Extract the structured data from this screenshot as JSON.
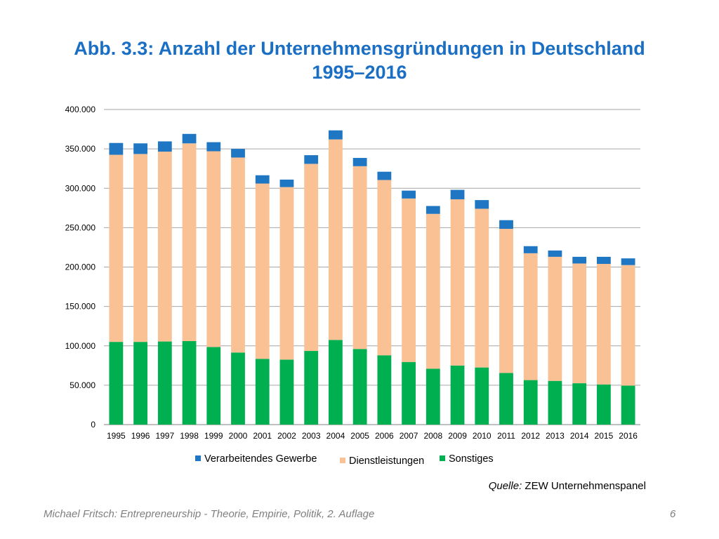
{
  "title": {
    "line1": "Abb. 3.3: Anzahl der Unternehmensgründungen in Deutschland",
    "line2": "1995–2016"
  },
  "source": {
    "label": "Quelle:",
    "text": "ZEW Unternehmenspanel"
  },
  "footer": {
    "text": "Michael Fritsch: Entrepreneurship - Theorie, Empirie, Politik, 2. Auflage",
    "page": "6"
  },
  "colors": {
    "verarbeitendes": "#1f77c4",
    "dienstleistungen": "#f9c194",
    "sonstiges": "#00b050",
    "grid": "#a6a6a6",
    "axis": "#808080"
  },
  "chart_data": {
    "type": "bar",
    "stacked": true,
    "categories": [
      "1995",
      "1996",
      "1997",
      "1998",
      "1999",
      "2000",
      "2001",
      "2002",
      "2003",
      "2004",
      "2005",
      "2006",
      "2007",
      "2008",
      "2009",
      "2010",
      "2011",
      "2012",
      "2013",
      "2014",
      "2015",
      "2016"
    ],
    "series": [
      {
        "name": "Sonstiges",
        "color": "#00b050",
        "values": [
          105000,
          105000,
          105500,
          106000,
          98500,
          91500,
          83500,
          82500,
          93500,
          107500,
          96000,
          88000,
          79500,
          71000,
          75000,
          72500,
          65500,
          56500,
          55500,
          52500,
          51000,
          49500
        ]
      },
      {
        "name": "Dienstleistungen",
        "color": "#f9c194",
        "values": [
          237500,
          238500,
          241000,
          251000,
          248500,
          247500,
          222500,
          219000,
          237500,
          254500,
          232000,
          222500,
          207500,
          196500,
          211000,
          201500,
          183000,
          161000,
          157500,
          152000,
          153000,
          153000
        ]
      },
      {
        "name": "Verarbeitendes Gewerbe",
        "color": "#1f77c4",
        "values": [
          15000,
          13500,
          13000,
          12000,
          11500,
          11000,
          10500,
          9500,
          11000,
          11500,
          10500,
          10500,
          10000,
          10000,
          12000,
          11000,
          11000,
          9000,
          8000,
          8500,
          9000,
          8500
        ]
      }
    ],
    "legend": [
      "Verarbeitendes Gewerbe",
      "Dienstleistungen",
      "Sonstiges"
    ],
    "legend_position": "bottom",
    "ylim": [
      0,
      400000
    ],
    "yticks": [
      0,
      50000,
      100000,
      150000,
      200000,
      250000,
      300000,
      350000,
      400000
    ],
    "ytick_labels": [
      "0",
      "50.000",
      "100.000",
      "150.000",
      "200.000",
      "250.000",
      "300.000",
      "350.000",
      "400.000"
    ],
    "grid": true,
    "xlabel": "",
    "ylabel": ""
  }
}
